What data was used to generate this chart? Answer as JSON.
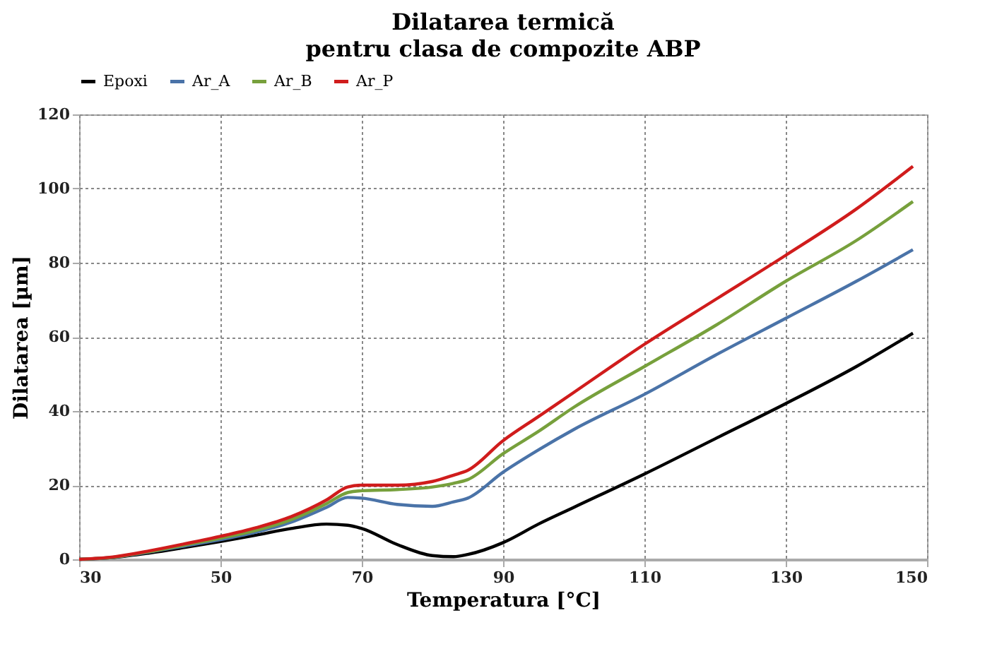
{
  "chart_data": {
    "type": "line",
    "title": "Dilatarea termică",
    "subtitle": "pentru clasa de compozite ABP",
    "xlabel": "Temperatura [°C]",
    "ylabel": "Dilatarea [µm]",
    "x": [
      30,
      35,
      40,
      45,
      50,
      55,
      60,
      65,
      68,
      70,
      75,
      80,
      83,
      85,
      90,
      95,
      100,
      110,
      120,
      130,
      140,
      148
    ],
    "series": [
      {
        "name": "Epoxi",
        "color": "#000000",
        "values": [
          0,
          0.5,
          1.7,
          3.2,
          4.8,
          6.5,
          8.3,
          9.5,
          9.2,
          8.3,
          4,
          1,
          0.7,
          1.3,
          4.5,
          9.5,
          14,
          23,
          32.5,
          42,
          52,
          61
        ]
      },
      {
        "name": "Ar_A",
        "color": "#4a73a8",
        "values": [
          0,
          0.6,
          2,
          3.6,
          5.3,
          7.3,
          10,
          14,
          16.7,
          16.5,
          14.8,
          14.3,
          15.5,
          16.5,
          23.5,
          29.5,
          35,
          44.5,
          55,
          65,
          75,
          83.5
        ]
      },
      {
        "name": "Ar_B",
        "color": "#77a03c",
        "values": [
          0,
          0.6,
          2.1,
          3.9,
          5.7,
          7.8,
          10.7,
          15,
          18,
          18.5,
          18.8,
          19.5,
          20.5,
          21.5,
          28.5,
          34.5,
          41,
          52,
          63,
          75,
          86,
          96.5
        ]
      },
      {
        "name": "Ar_P",
        "color": "#d01c1c",
        "values": [
          0,
          0.7,
          2.3,
          4.2,
          6.2,
          8.5,
          11.5,
          16,
          19.5,
          20,
          20,
          21,
          22.7,
          24,
          32,
          38.5,
          45,
          58,
          70,
          82,
          94.5,
          106
        ]
      }
    ],
    "xlim": [
      30,
      150
    ],
    "xticks": [
      30,
      50,
      70,
      90,
      110,
      130,
      150
    ],
    "ylim": [
      0,
      120
    ],
    "yticks": [
      0,
      20,
      40,
      60,
      80,
      100,
      120
    ],
    "grid": true,
    "legend": "top",
    "line_style": "solid",
    "marker": "none"
  }
}
